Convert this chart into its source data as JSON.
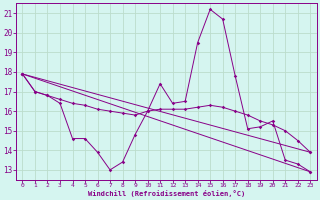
{
  "xlabel": "Windchill (Refroidissement éolien,°C)",
  "background_color": "#d5f5f0",
  "grid_color": "#bbddcc",
  "line_color": "#880088",
  "xlim": [
    -0.5,
    23.5
  ],
  "ylim": [
    12.5,
    21.5
  ],
  "yticks": [
    13,
    14,
    15,
    16,
    17,
    18,
    19,
    20,
    21
  ],
  "xticks": [
    0,
    1,
    2,
    3,
    4,
    5,
    6,
    7,
    8,
    9,
    10,
    11,
    12,
    13,
    14,
    15,
    16,
    17,
    18,
    19,
    20,
    21,
    22,
    23
  ],
  "lines": [
    {
      "x": [
        0,
        1,
        2,
        3,
        4,
        5,
        6,
        7,
        8,
        9,
        10,
        11,
        12,
        13,
        14,
        15,
        16,
        17,
        18,
        19,
        20,
        21,
        22,
        23
      ],
      "y": [
        17.9,
        17.0,
        16.8,
        16.4,
        14.6,
        14.6,
        13.9,
        13.0,
        13.4,
        14.8,
        16.0,
        17.4,
        16.4,
        16.5,
        19.5,
        21.2,
        20.7,
        17.8,
        15.1,
        15.2,
        15.5,
        13.5,
        13.3,
        12.9
      ]
    },
    {
      "x": [
        0,
        1,
        2,
        3,
        4,
        5,
        6,
        7,
        8,
        9,
        10,
        11,
        12,
        13,
        14,
        15,
        16,
        17,
        18,
        19,
        20,
        21,
        22,
        23
      ],
      "y": [
        17.9,
        17.0,
        16.8,
        16.6,
        16.4,
        16.3,
        16.1,
        16.0,
        15.9,
        15.8,
        16.0,
        16.1,
        16.1,
        16.1,
        16.2,
        16.3,
        16.2,
        16.0,
        15.8,
        15.5,
        15.3,
        15.0,
        14.5,
        13.9
      ]
    },
    {
      "x": [
        0,
        23
      ],
      "y": [
        17.9,
        12.9
      ]
    },
    {
      "x": [
        0,
        23
      ],
      "y": [
        17.9,
        13.9
      ]
    }
  ]
}
